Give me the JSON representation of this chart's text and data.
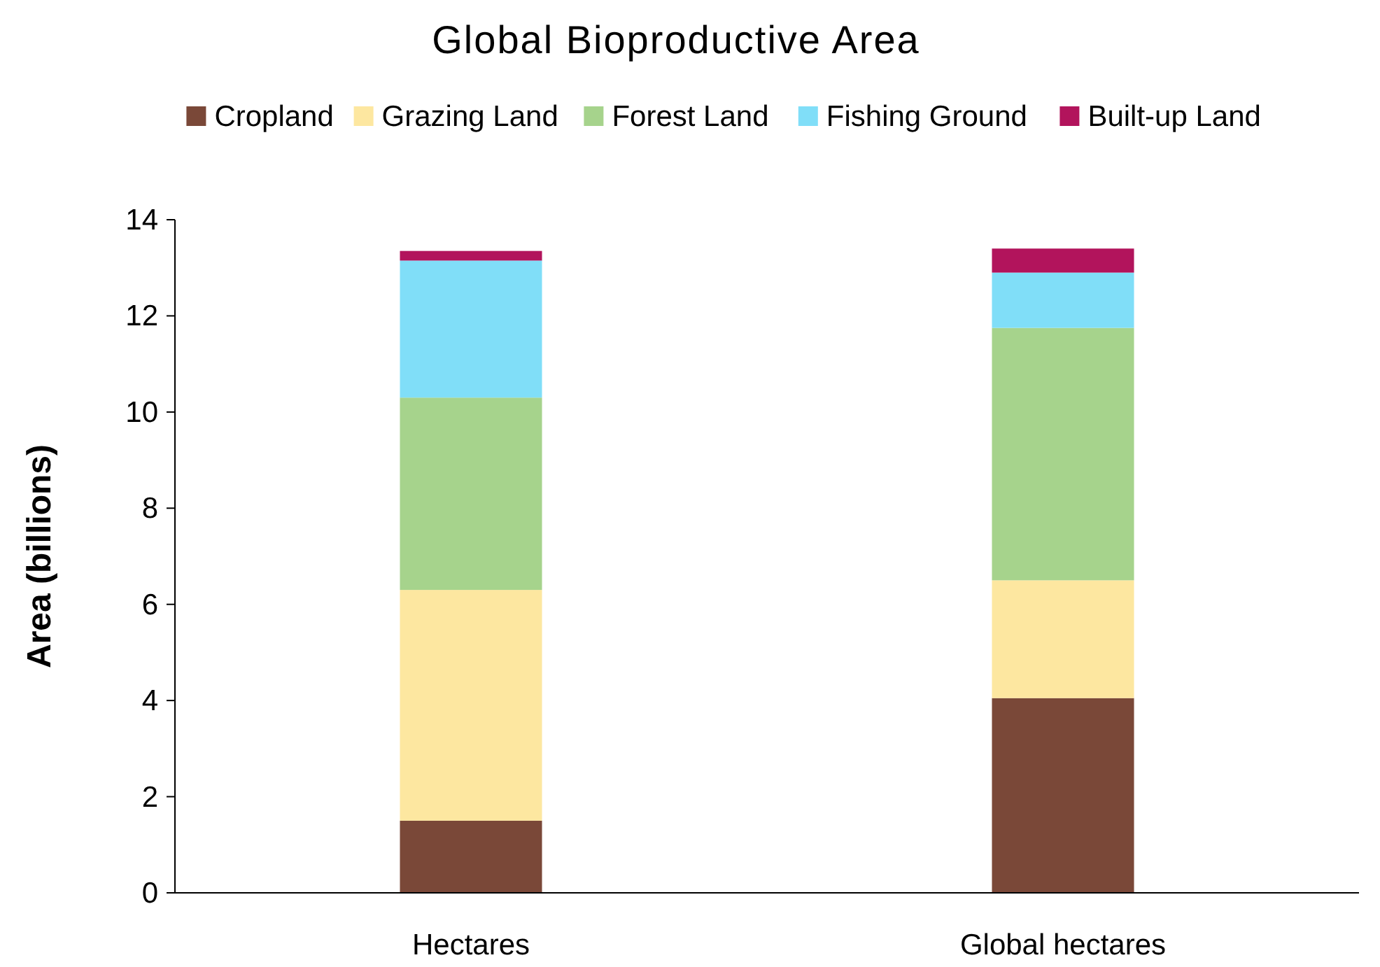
{
  "chart_data": {
    "type": "bar",
    "title": "Global Bioproductive Area",
    "ylabel": "Area (billions)",
    "categories": [
      "Hectares",
      "Global hectares"
    ],
    "stacked": true,
    "legend": "top",
    "grid": false,
    "ylim": [
      0,
      14
    ],
    "yticks": [
      0,
      2,
      4,
      6,
      8,
      10,
      12,
      14
    ],
    "series": [
      {
        "name": "Cropland",
        "color": "#7a4838",
        "values": [
          1.5,
          4.05
        ]
      },
      {
        "name": "Grazing Land",
        "color": "#fde7a0",
        "values": [
          4.8,
          2.45
        ]
      },
      {
        "name": "Forest Land",
        "color": "#a6d38c",
        "values": [
          4.0,
          5.25
        ]
      },
      {
        "name": "Fishing Ground",
        "color": "#80def8",
        "values": [
          2.85,
          1.15
        ]
      },
      {
        "name": "Built-up Land",
        "color": "#b2145c",
        "values": [
          0.2,
          0.5
        ]
      }
    ]
  }
}
